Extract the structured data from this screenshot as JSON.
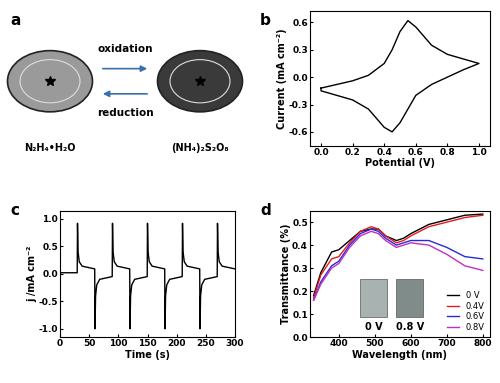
{
  "diagram": {
    "panel": "a",
    "arrows": [
      {
        "label": "oxidation"
      },
      {
        "label": "reduction"
      }
    ],
    "items": [
      {
        "label": "N₂H₄•H₂O",
        "color": "#9a9a9a"
      },
      {
        "label": "(NH₄)₂S₂O₈",
        "color": "#3a3a3a"
      }
    ]
  },
  "chart_data": [
    {
      "panel": "b",
      "type": "line",
      "x_label": "Potential (V)",
      "y_label": "Current (mA cm⁻²)",
      "color": "#000000",
      "x": [
        0.0,
        0.1,
        0.2,
        0.3,
        0.4,
        0.45,
        0.5,
        0.55,
        0.6,
        0.7,
        0.8,
        0.9,
        1.0,
        0.9,
        0.8,
        0.7,
        0.6,
        0.55,
        0.5,
        0.45,
        0.4,
        0.35,
        0.3,
        0.2,
        0.1,
        0.0,
        0.0
      ],
      "values": [
        -0.12,
        -0.08,
        -0.04,
        0.02,
        0.15,
        0.3,
        0.5,
        0.62,
        0.55,
        0.35,
        0.25,
        0.2,
        0.15,
        0.08,
        0.0,
        -0.08,
        -0.2,
        -0.35,
        -0.5,
        -0.6,
        -0.55,
        -0.45,
        -0.35,
        -0.25,
        -0.2,
        -0.15,
        -0.12
      ],
      "xlim": [
        -0.07,
        1.07
      ],
      "xticks": [
        {
          "value": 0.0,
          "label": "0.0"
        },
        {
          "value": 0.2,
          "label": "0.2"
        },
        {
          "value": 0.4,
          "label": "0.4"
        },
        {
          "value": 0.6,
          "label": "0.6"
        },
        {
          "value": 0.8,
          "label": "0.8"
        },
        {
          "value": 1.0,
          "label": "1.0"
        }
      ],
      "ylim": [
        -0.75,
        0.72
      ],
      "yticks": [
        {
          "value": -0.6,
          "label": "-0.6"
        },
        {
          "value": -0.3,
          "label": "-0.3"
        },
        {
          "value": 0.0,
          "label": "0.0"
        },
        {
          "value": 0.3,
          "label": "0.3"
        },
        {
          "value": 0.6,
          "label": "0.6"
        }
      ]
    },
    {
      "panel": "c",
      "type": "line",
      "x_label": "Time (s)",
      "y_label": "j /mA cm⁻²",
      "color": "#000000",
      "x": [
        0,
        29.5,
        30,
        31,
        33,
        38,
        59.5,
        60,
        61,
        63,
        68,
        89.5,
        90,
        91,
        93,
        98,
        119.5,
        120,
        121,
        123,
        128,
        149.5,
        150,
        151,
        153,
        158,
        179.5,
        180,
        181,
        183,
        188,
        209.5,
        210,
        211,
        213,
        218,
        239.5,
        240,
        241,
        243,
        248,
        269.5,
        270,
        271,
        273,
        278,
        300
      ],
      "values": [
        0.02,
        0.02,
        0.92,
        0.4,
        0.22,
        0.14,
        0.09,
        -1.0,
        -0.4,
        -0.2,
        -0.1,
        -0.05,
        0.92,
        0.4,
        0.22,
        0.14,
        0.09,
        -1.0,
        -0.4,
        -0.2,
        -0.1,
        -0.05,
        0.92,
        0.4,
        0.22,
        0.14,
        0.09,
        -1.0,
        -0.4,
        -0.2,
        -0.1,
        -0.05,
        0.92,
        0.4,
        0.22,
        0.14,
        0.09,
        -1.0,
        -0.4,
        -0.2,
        -0.1,
        -0.05,
        0.92,
        0.4,
        0.22,
        0.14,
        0.09
      ],
      "xlim": [
        0,
        300
      ],
      "xticks": [
        0,
        50,
        100,
        150,
        200,
        250,
        300
      ],
      "ylim": [
        -1.15,
        1.15
      ],
      "yticks": [
        {
          "value": -1.0,
          "label": "-1.0"
        },
        {
          "value": -0.5,
          "label": "-0.5"
        },
        {
          "value": 0.0,
          "label": "0.0"
        },
        {
          "value": 0.5,
          "label": "0.5"
        },
        {
          "value": 1.0,
          "label": "1.0"
        }
      ]
    },
    {
      "panel": "d",
      "type": "line",
      "x_label": "Wavelength (nm)",
      "y_label": "Transmittance (%)",
      "legend": "lower right",
      "insets": [
        {
          "label": "0 V",
          "color": "#a8b2b0"
        },
        {
          "label": "0.8 V",
          "color": "#7f8c89"
        }
      ],
      "x": [
        330,
        350,
        380,
        400,
        430,
        460,
        490,
        510,
        530,
        560,
        580,
        600,
        650,
        700,
        750,
        800
      ],
      "series": [
        {
          "name": "0 V",
          "color": "#000000",
          "values": [
            0.18,
            0.28,
            0.37,
            0.38,
            0.42,
            0.46,
            0.47,
            0.47,
            0.44,
            0.42,
            0.43,
            0.45,
            0.49,
            0.51,
            0.53,
            0.535
          ]
        },
        {
          "name": "0.4V",
          "color": "#e41a1c",
          "values": [
            0.17,
            0.27,
            0.34,
            0.35,
            0.41,
            0.46,
            0.48,
            0.47,
            0.44,
            0.41,
            0.42,
            0.44,
            0.48,
            0.5,
            0.52,
            0.53
          ]
        },
        {
          "name": "0.6V",
          "color": "#2a2ad8",
          "values": [
            0.16,
            0.24,
            0.31,
            0.33,
            0.4,
            0.45,
            0.47,
            0.46,
            0.43,
            0.4,
            0.41,
            0.42,
            0.42,
            0.39,
            0.35,
            0.34
          ]
        },
        {
          "name": "0.8V",
          "color": "#c030c0",
          "values": [
            0.16,
            0.23,
            0.3,
            0.32,
            0.39,
            0.44,
            0.46,
            0.45,
            0.42,
            0.39,
            0.4,
            0.41,
            0.4,
            0.36,
            0.31,
            0.29
          ]
        }
      ],
      "xlim": [
        320,
        820
      ],
      "xticks": [
        400,
        500,
        600,
        700,
        800
      ],
      "ylim": [
        0.0,
        0.55
      ],
      "yticks": [
        {
          "value": 0.0,
          "label": "0.0"
        },
        {
          "value": 0.1,
          "label": "0.1"
        },
        {
          "value": 0.2,
          "label": "0.2"
        },
        {
          "value": 0.3,
          "label": "0.3"
        },
        {
          "value": 0.4,
          "label": "0.4"
        },
        {
          "value": 0.5,
          "label": "0.5"
        }
      ]
    }
  ]
}
